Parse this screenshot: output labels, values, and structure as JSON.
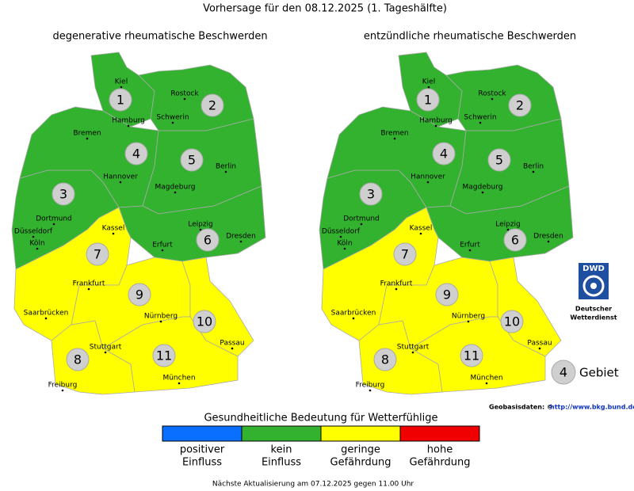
{
  "title": "Vorhersage für den 08.12.2025 (1. Tageshälfte)",
  "maps": [
    {
      "title": "degenerative rheumatische Beschwerden"
    },
    {
      "title": "entzündliche rheumatische Beschwerden"
    }
  ],
  "regions": [
    {
      "label": "1",
      "color": "#33b22f"
    },
    {
      "label": "2",
      "color": "#33b22f"
    },
    {
      "label": "3",
      "color": "#33b22f"
    },
    {
      "label": "4",
      "color": "#33b22f"
    },
    {
      "label": "5",
      "color": "#33b22f"
    },
    {
      "label": "6",
      "color": "#33b22f"
    },
    {
      "label": "7",
      "color": "#ffff00"
    },
    {
      "label": "8",
      "color": "#ffff00"
    },
    {
      "label": "9",
      "color": "#ffff00"
    },
    {
      "label": "10",
      "color": "#ffff00"
    },
    {
      "label": "11",
      "color": "#ffff00"
    }
  ],
  "cities": [
    "Kiel",
    "Rostock",
    "Hamburg",
    "Schwerin",
    "Bremen",
    "Hannover",
    "Berlin",
    "Magdeburg",
    "Dortmund",
    "Düsseldorf",
    "Köln",
    "Kassel",
    "Leipzig",
    "Dresden",
    "Erfurt",
    "Frankfurt",
    "Saarbrücken",
    "Nürnberg",
    "Stuttgart",
    "Passau",
    "Freiburg",
    "München"
  ],
  "legend": {
    "title": "Gesundheitliche Bedeutung für Wetterfühlige",
    "items": [
      {
        "lines": [
          "positiver",
          "Einfluss"
        ],
        "color": "#0a6eff"
      },
      {
        "lines": [
          "kein",
          "Einfluss"
        ],
        "color": "#33b22f"
      },
      {
        "lines": [
          "geringe",
          "Gefährdung"
        ],
        "color": "#ffff00"
      },
      {
        "lines": [
          "hohe",
          "Gefährdung"
        ],
        "color": "#f00000"
      }
    ]
  },
  "logo": {
    "abbr": "DWD",
    "lines": [
      "Deutscher",
      "Wetterdienst"
    ]
  },
  "key": {
    "number": "4",
    "label": "Gebiet"
  },
  "credit": {
    "text": "Geobasisdaten: ©",
    "link": "http://www.bkg.bund.de"
  },
  "footer": "Nächste Aktualisierung am 07.12.2025 gegen 11.00 Uhr"
}
